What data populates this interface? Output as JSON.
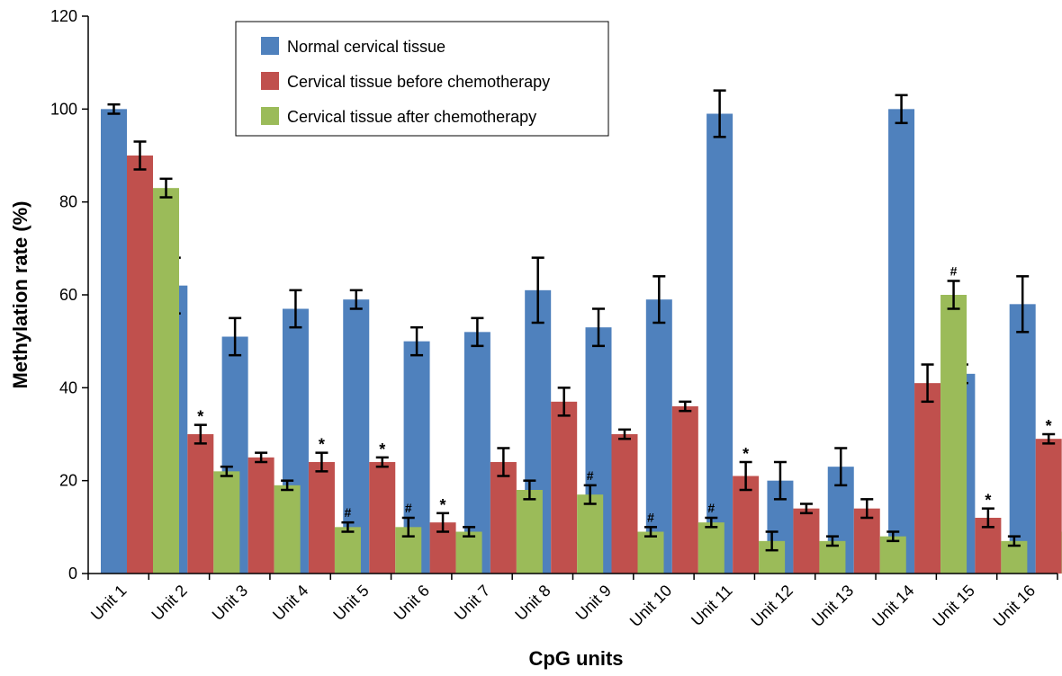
{
  "chart_data": {
    "type": "bar",
    "xlabel": "CpG units",
    "ylabel": "Methylation rate (%)",
    "ylim": [
      0,
      120
    ],
    "yticks": [
      0,
      20,
      40,
      60,
      80,
      100,
      120
    ],
    "grid": false,
    "legend_position": "top-left",
    "categories": [
      "Unit 1",
      "Unit 2",
      "Unit 3",
      "Unit 4",
      "Unit 5",
      "Unit 6",
      "Unit 7",
      "Unit 8",
      "Unit 9",
      "Unit 10",
      "Unit 11",
      "Unit 12",
      "Unit 13",
      "Unit 14",
      "Unit 15",
      "Unit 16"
    ],
    "series": [
      {
        "name": "Normal cervical tissue",
        "color": "#4f81bd",
        "values": [
          100,
          62,
          51,
          57,
          59,
          50,
          52,
          61,
          53,
          59,
          99,
          20,
          23,
          100,
          43,
          58
        ],
        "errors": [
          1,
          6,
          4,
          4,
          2,
          3,
          3,
          7,
          4,
          5,
          5,
          4,
          4,
          3,
          2,
          6
        ],
        "markers": [
          "",
          "",
          "",
          "",
          "",
          "",
          "",
          "",
          "",
          "",
          "",
          "",
          "",
          "",
          "",
          ""
        ]
      },
      {
        "name": "Cervical tissue before chemotherapy",
        "color": "#c0504d",
        "values": [
          90,
          30,
          25,
          24,
          24,
          11,
          24,
          37,
          30,
          36,
          21,
          14,
          14,
          41,
          12,
          29
        ],
        "errors": [
          3,
          2,
          1,
          2,
          1,
          2,
          3,
          3,
          1,
          1,
          3,
          1,
          2,
          4,
          2,
          1
        ],
        "markers": [
          "",
          "*",
          "",
          "*",
          "*",
          "*",
          "",
          "",
          "",
          "",
          "*",
          "",
          "",
          "",
          "*",
          "*"
        ]
      },
      {
        "name": "Cervical tissue after chemotherapy",
        "color": "#9bbb59",
        "values": [
          83,
          22,
          19,
          10,
          10,
          9,
          18,
          17,
          9,
          11,
          7,
          7,
          8,
          60,
          7,
          9
        ],
        "errors": [
          2,
          1,
          1,
          1,
          2,
          1,
          2,
          2,
          1,
          1,
          2,
          1,
          1,
          3,
          1,
          1
        ],
        "markers": [
          "",
          "",
          "",
          "#",
          "#",
          "",
          "",
          "#",
          "#",
          "#",
          "",
          "",
          "",
          "#",
          "",
          "#"
        ]
      }
    ]
  }
}
